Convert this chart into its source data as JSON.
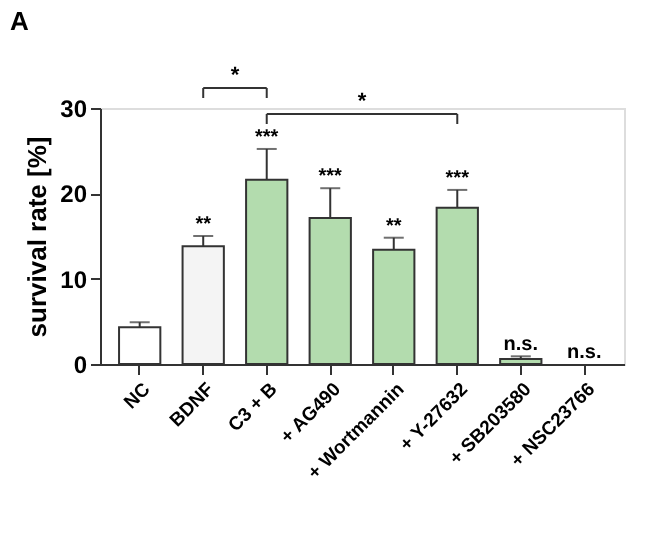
{
  "chart_data": {
    "type": "bar",
    "title": "A",
    "ylabel": "survival rate [%]",
    "categories": [
      "NC",
      "BDNF",
      "C3 + B",
      "+ AG490",
      "+ Wortmannin",
      "+ Y-27632",
      "+ SB203580",
      "+ NSC23766"
    ],
    "values": [
      4.3,
      13.8,
      21.6,
      17.1,
      13.4,
      18.3,
      0.6,
      0
    ],
    "errors": [
      0.6,
      1.2,
      3.6,
      3.5,
      1.4,
      2.1,
      0.3,
      null
    ],
    "colors": [
      "#ffffff",
      "#f4f4f4",
      "#b3dcae",
      "#b3dcae",
      "#b3dcae",
      "#b3dcae",
      "#b3dcae",
      "#b3dcae"
    ],
    "ylim": [
      0,
      30
    ],
    "yticks": [
      0,
      10,
      20,
      30
    ],
    "grid": false,
    "annotations": [
      {
        "text": "**",
        "x": "BDNF",
        "y": 15.0
      },
      {
        "text": "***",
        "x": "C3 + B",
        "y": 25.2
      },
      {
        "text": "***",
        "x": "+ AG490",
        "y": 20.6
      },
      {
        "text": "**",
        "x": "+ Wortmannin",
        "y": 14.8
      },
      {
        "text": "***",
        "x": "+ Y-27632",
        "y": 20.4
      },
      {
        "text": "n.s.",
        "x": "+ SB203580",
        "y": 0.9
      },
      {
        "text": "n.s.",
        "x": "+ NSC23766",
        "y": 0
      },
      "*",
      "*"
    ]
  }
}
